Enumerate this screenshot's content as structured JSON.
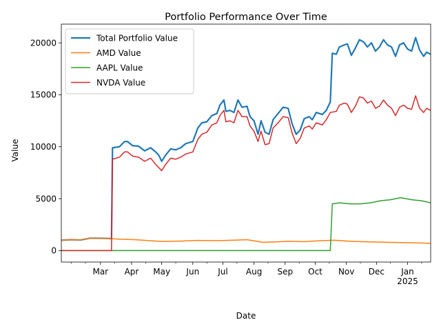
{
  "chart_data": {
    "type": "line",
    "title": "Portfolio Performance Over Time",
    "xlabel": "Date",
    "ylabel": "Value",
    "xlim": [
      "2024-01-22",
      "2025-01-24"
    ],
    "ylim": [
      -1100,
      21800
    ],
    "x_ticks": [
      {
        "date": "2024-03-01",
        "label": "Mar"
      },
      {
        "date": "2024-04-01",
        "label": "Apr"
      },
      {
        "date": "2024-05-01",
        "label": "May"
      },
      {
        "date": "2024-06-01",
        "label": "Jun"
      },
      {
        "date": "2024-07-01",
        "label": "Jul"
      },
      {
        "date": "2024-08-01",
        "label": "Aug"
      },
      {
        "date": "2024-09-01",
        "label": "Sep"
      },
      {
        "date": "2024-10-01",
        "label": "Oct"
      },
      {
        "date": "2024-11-01",
        "label": "Nov"
      },
      {
        "date": "2024-12-01",
        "label": "Dec"
      },
      {
        "date": "2025-01-01",
        "label": "Jan",
        "sublabel": "2025"
      }
    ],
    "y_ticks": [
      0,
      5000,
      10000,
      15000,
      20000
    ],
    "legend": "upper-left",
    "grid": false,
    "series": [
      {
        "name": "Total Portfolio Value",
        "color": "#1f77b4",
        "width": 2.2,
        "points": [
          [
            "2024-01-22",
            1000
          ],
          [
            "2024-02-01",
            1050
          ],
          [
            "2024-02-10",
            1020
          ],
          [
            "2024-02-20",
            1200
          ],
          [
            "2024-03-06",
            1180
          ],
          [
            "2024-03-12",
            1150
          ],
          [
            "2024-03-13",
            9900
          ],
          [
            "2024-03-20",
            10000
          ],
          [
            "2024-03-25",
            10500
          ],
          [
            "2024-03-28",
            10500
          ],
          [
            "2024-04-02",
            10100
          ],
          [
            "2024-04-08",
            10050
          ],
          [
            "2024-04-14",
            9600
          ],
          [
            "2024-04-20",
            9900
          ],
          [
            "2024-04-25",
            9500
          ],
          [
            "2024-04-28",
            9200
          ],
          [
            "2024-05-01",
            8600
          ],
          [
            "2024-05-05",
            9200
          ],
          [
            "2024-05-10",
            9800
          ],
          [
            "2024-05-15",
            9700
          ],
          [
            "2024-05-20",
            9900
          ],
          [
            "2024-05-25",
            10300
          ],
          [
            "2024-06-01",
            10500
          ],
          [
            "2024-06-06",
            11800
          ],
          [
            "2024-06-10",
            12300
          ],
          [
            "2024-06-15",
            12400
          ],
          [
            "2024-06-20",
            13000
          ],
          [
            "2024-06-25",
            13200
          ],
          [
            "2024-06-28",
            14000
          ],
          [
            "2024-07-02",
            14500
          ],
          [
            "2024-07-04",
            13400
          ],
          [
            "2024-07-08",
            13500
          ],
          [
            "2024-07-12",
            13300
          ],
          [
            "2024-07-16",
            14500
          ],
          [
            "2024-07-20",
            13800
          ],
          [
            "2024-07-25",
            13900
          ],
          [
            "2024-07-28",
            12900
          ],
          [
            "2024-08-01",
            12500
          ],
          [
            "2024-08-05",
            11200
          ],
          [
            "2024-08-08",
            12500
          ],
          [
            "2024-08-12",
            11400
          ],
          [
            "2024-08-16",
            11200
          ],
          [
            "2024-08-20",
            12600
          ],
          [
            "2024-08-25",
            13200
          ],
          [
            "2024-08-30",
            13800
          ],
          [
            "2024-09-04",
            13700
          ],
          [
            "2024-09-08",
            12200
          ],
          [
            "2024-09-12",
            11200
          ],
          [
            "2024-09-16",
            11600
          ],
          [
            "2024-09-20",
            12700
          ],
          [
            "2024-09-25",
            12900
          ],
          [
            "2024-09-28",
            12600
          ],
          [
            "2024-10-02",
            13300
          ],
          [
            "2024-10-08",
            13100
          ],
          [
            "2024-10-12",
            13500
          ],
          [
            "2024-10-16",
            14300
          ],
          [
            "2024-10-18",
            19000
          ],
          [
            "2024-10-22",
            18900
          ],
          [
            "2024-10-25",
            19600
          ],
          [
            "2024-10-30",
            19800
          ],
          [
            "2024-11-02",
            19900
          ],
          [
            "2024-11-06",
            18800
          ],
          [
            "2024-11-10",
            19500
          ],
          [
            "2024-11-14",
            20300
          ],
          [
            "2024-11-18",
            20100
          ],
          [
            "2024-11-22",
            19600
          ],
          [
            "2024-11-26",
            20000
          ],
          [
            "2024-11-30",
            19200
          ],
          [
            "2024-12-04",
            19600
          ],
          [
            "2024-12-08",
            20300
          ],
          [
            "2024-12-12",
            19800
          ],
          [
            "2024-12-16",
            19600
          ],
          [
            "2024-12-20",
            18700
          ],
          [
            "2024-12-24",
            19800
          ],
          [
            "2024-12-28",
            20000
          ],
          [
            "2025-01-01",
            19400
          ],
          [
            "2025-01-05",
            19200
          ],
          [
            "2025-01-09",
            20500
          ],
          [
            "2025-01-13",
            19300
          ],
          [
            "2025-01-17",
            18700
          ],
          [
            "2025-01-20",
            19100
          ],
          [
            "2025-01-24",
            18900
          ]
        ]
      },
      {
        "name": "AMD Value",
        "color": "#ff7f0e",
        "width": 1.5,
        "points": [
          [
            "2024-01-22",
            1000
          ],
          [
            "2024-02-01",
            1050
          ],
          [
            "2024-02-10",
            1020
          ],
          [
            "2024-02-20",
            1200
          ],
          [
            "2024-03-06",
            1180
          ],
          [
            "2024-03-12",
            1150
          ],
          [
            "2024-03-20",
            1100
          ],
          [
            "2024-04-05",
            1050
          ],
          [
            "2024-04-20",
            950
          ],
          [
            "2024-05-01",
            880
          ],
          [
            "2024-05-20",
            920
          ],
          [
            "2024-06-05",
            980
          ],
          [
            "2024-06-25",
            960
          ],
          [
            "2024-07-10",
            1000
          ],
          [
            "2024-07-25",
            1050
          ],
          [
            "2024-08-10",
            800
          ],
          [
            "2024-08-25",
            850
          ],
          [
            "2024-09-05",
            900
          ],
          [
            "2024-09-20",
            860
          ],
          [
            "2024-10-05",
            950
          ],
          [
            "2024-10-20",
            1000
          ],
          [
            "2024-11-05",
            900
          ],
          [
            "2024-11-20",
            850
          ],
          [
            "2024-12-05",
            820
          ],
          [
            "2024-12-20",
            780
          ],
          [
            "2025-01-05",
            760
          ],
          [
            "2025-01-24",
            700
          ]
        ]
      },
      {
        "name": "AAPL Value",
        "color": "#2ca02c",
        "width": 1.5,
        "points": [
          [
            "2024-01-22",
            0
          ],
          [
            "2024-10-16",
            0
          ],
          [
            "2024-10-18",
            4500
          ],
          [
            "2024-10-25",
            4600
          ],
          [
            "2024-11-05",
            4500
          ],
          [
            "2024-11-15",
            4500
          ],
          [
            "2024-11-25",
            4600
          ],
          [
            "2024-12-05",
            4800
          ],
          [
            "2024-12-15",
            4900
          ],
          [
            "2024-12-25",
            5100
          ],
          [
            "2025-01-05",
            4900
          ],
          [
            "2025-01-15",
            4800
          ],
          [
            "2025-01-24",
            4600
          ]
        ]
      },
      {
        "name": "NVDA Value",
        "color": "#d62728",
        "width": 1.5,
        "points": [
          [
            "2024-01-22",
            0
          ],
          [
            "2024-03-12",
            0
          ],
          [
            "2024-03-13",
            8800
          ],
          [
            "2024-03-20",
            9000
          ],
          [
            "2024-03-25",
            9500
          ],
          [
            "2024-03-28",
            9500
          ],
          [
            "2024-04-02",
            9100
          ],
          [
            "2024-04-08",
            9000
          ],
          [
            "2024-04-14",
            8600
          ],
          [
            "2024-04-20",
            8900
          ],
          [
            "2024-04-25",
            8300
          ],
          [
            "2024-04-28",
            8000
          ],
          [
            "2024-05-01",
            7700
          ],
          [
            "2024-05-05",
            8300
          ],
          [
            "2024-05-10",
            8900
          ],
          [
            "2024-05-15",
            8800
          ],
          [
            "2024-05-20",
            9000
          ],
          [
            "2024-05-25",
            9300
          ],
          [
            "2024-06-01",
            9500
          ],
          [
            "2024-06-06",
            10700
          ],
          [
            "2024-06-10",
            11200
          ],
          [
            "2024-06-15",
            11400
          ],
          [
            "2024-06-20",
            12100
          ],
          [
            "2024-06-25",
            12300
          ],
          [
            "2024-06-28",
            13000
          ],
          [
            "2024-07-02",
            13500
          ],
          [
            "2024-07-04",
            12400
          ],
          [
            "2024-07-08",
            12500
          ],
          [
            "2024-07-12",
            12300
          ],
          [
            "2024-07-16",
            13500
          ],
          [
            "2024-07-20",
            12900
          ],
          [
            "2024-07-25",
            12900
          ],
          [
            "2024-07-28",
            12000
          ],
          [
            "2024-08-01",
            11500
          ],
          [
            "2024-08-05",
            10500
          ],
          [
            "2024-08-08",
            11500
          ],
          [
            "2024-08-12",
            10200
          ],
          [
            "2024-08-16",
            10300
          ],
          [
            "2024-08-20",
            11800
          ],
          [
            "2024-08-25",
            12300
          ],
          [
            "2024-08-30",
            12900
          ],
          [
            "2024-09-04",
            12800
          ],
          [
            "2024-09-08",
            11300
          ],
          [
            "2024-09-12",
            10300
          ],
          [
            "2024-09-16",
            10800
          ],
          [
            "2024-09-20",
            11800
          ],
          [
            "2024-09-25",
            12000
          ],
          [
            "2024-09-28",
            11700
          ],
          [
            "2024-10-02",
            12300
          ],
          [
            "2024-10-08",
            12100
          ],
          [
            "2024-10-12",
            12600
          ],
          [
            "2024-10-16",
            13300
          ],
          [
            "2024-10-22",
            13400
          ],
          [
            "2024-10-25",
            14000
          ],
          [
            "2024-10-30",
            14200
          ],
          [
            "2024-11-02",
            14100
          ],
          [
            "2024-11-06",
            13300
          ],
          [
            "2024-11-10",
            13900
          ],
          [
            "2024-11-14",
            14800
          ],
          [
            "2024-11-18",
            14700
          ],
          [
            "2024-11-22",
            14200
          ],
          [
            "2024-11-26",
            14400
          ],
          [
            "2024-11-30",
            13700
          ],
          [
            "2024-12-04",
            13900
          ],
          [
            "2024-12-08",
            14500
          ],
          [
            "2024-12-12",
            14000
          ],
          [
            "2024-12-16",
            13700
          ],
          [
            "2024-12-20",
            13000
          ],
          [
            "2024-12-24",
            13800
          ],
          [
            "2024-12-28",
            14000
          ],
          [
            "2025-01-01",
            13700
          ],
          [
            "2025-01-05",
            13600
          ],
          [
            "2025-01-09",
            14900
          ],
          [
            "2025-01-13",
            13700
          ],
          [
            "2025-01-17",
            13300
          ],
          [
            "2025-01-20",
            13700
          ],
          [
            "2025-01-24",
            13500
          ]
        ]
      }
    ]
  }
}
